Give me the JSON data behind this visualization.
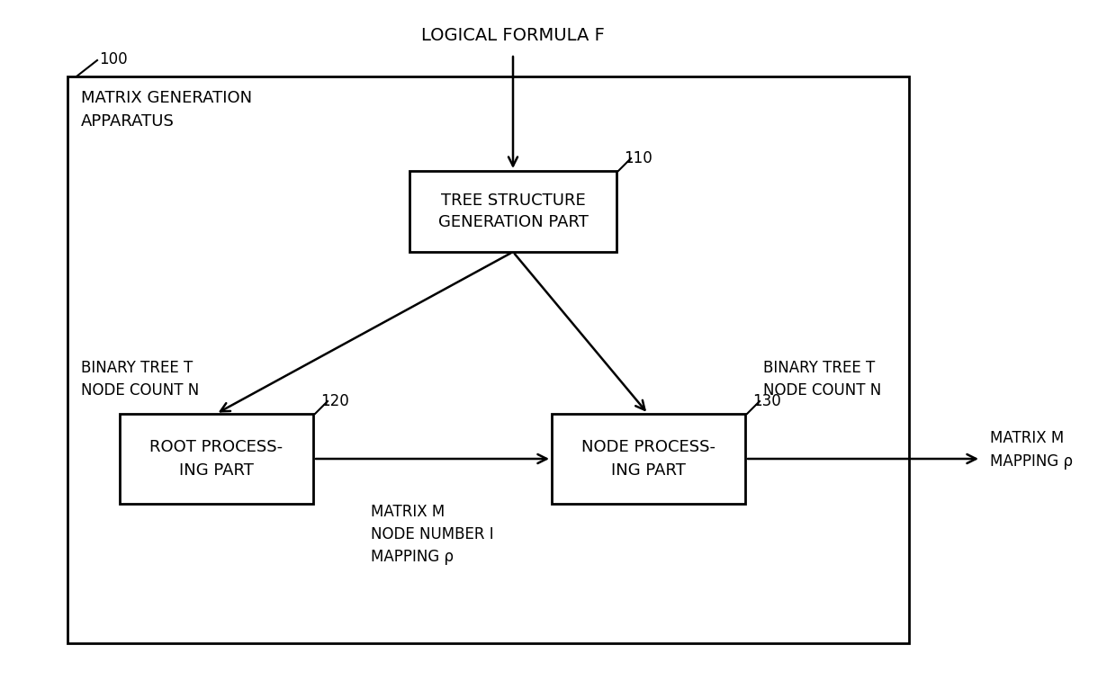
{
  "bg_color": "#ffffff",
  "title_text": "LOGICAL FORMULA F",
  "label_100": "100",
  "label_110": "110",
  "label_120": "120",
  "label_130": "130",
  "apparatus_label": "MATRIX GENERATION\nAPPARATUS",
  "box_tree": "TREE STRUCTURE\nGENERATION PART",
  "box_root": "ROOT PROCESS-\nING PART",
  "box_node": "NODE PROCESS-\nING PART",
  "label_binary_left": "BINARY TREE T\nNODE COUNT N",
  "label_binary_right": "BINARY TREE T\nNODE COUNT N",
  "label_middle": "MATRIX M\nNODE NUMBER I\nMAPPING ρ",
  "label_right_out": "MATRIX M\nMAPPING ρ",
  "font_size_box": 13,
  "font_size_label": 12,
  "font_size_title": 14,
  "font_size_number": 12
}
